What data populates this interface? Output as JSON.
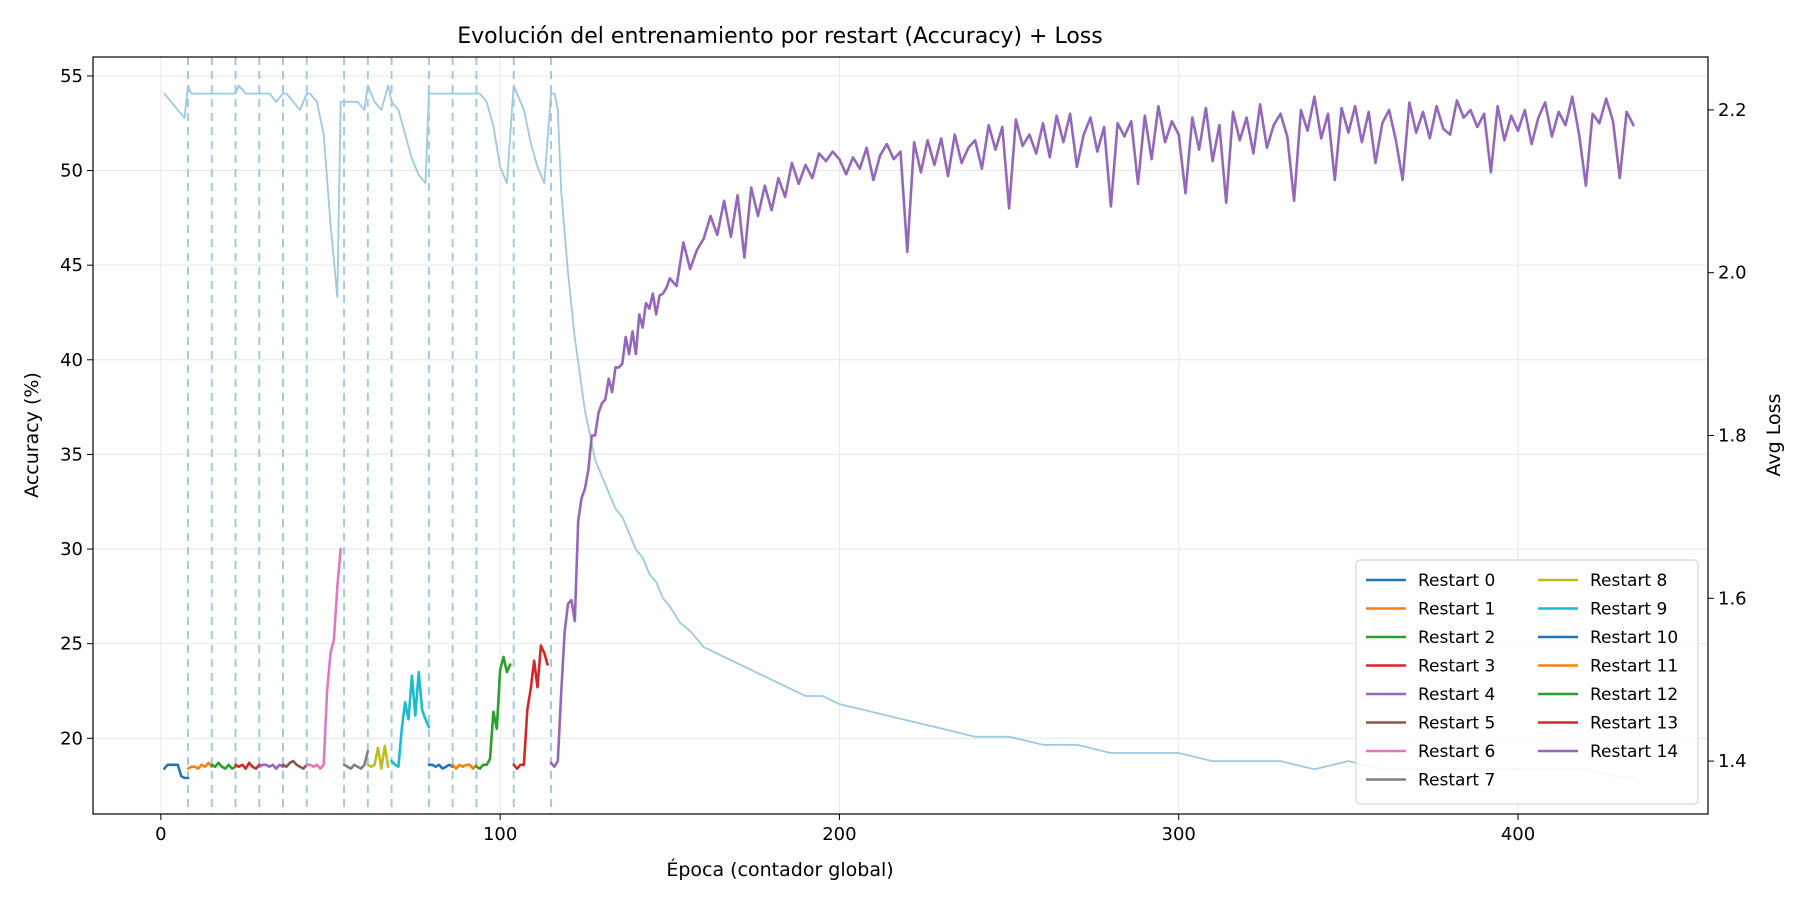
{
  "chart_data": {
    "type": "line",
    "title": "Evolución del entrenamiento por restart (Accuracy) + Loss",
    "xlabel": "Época (contador global)",
    "ylabel": "Accuracy (%)",
    "y2label": "Avg Loss",
    "xlim": [
      -20,
      456
    ],
    "ylim": [
      16.0,
      56.0
    ],
    "y2lim": [
      1.335,
      2.265
    ],
    "xticks": [
      0,
      100,
      200,
      300,
      400
    ],
    "yticks": [
      20,
      25,
      30,
      35,
      40,
      45,
      50,
      55
    ],
    "y2ticks": [
      1.4,
      1.6,
      1.8,
      2.0,
      2.2
    ],
    "grid": true,
    "legend_position": "lower-right",
    "legend_columns": 2,
    "restart_markers": [
      8,
      15,
      22,
      29,
      36,
      43,
      54,
      61,
      68,
      79,
      86,
      93,
      104,
      115
    ],
    "series": [
      {
        "name": "Restart 0",
        "color": "#1f77b4",
        "x": [
          1,
          2,
          3,
          4,
          5,
          6,
          7,
          8
        ],
        "y": [
          18.4,
          18.6,
          18.6,
          18.6,
          18.6,
          18.0,
          17.9,
          17.9
        ]
      },
      {
        "name": "Restart 1",
        "color": "#ff7f0e",
        "x": [
          8,
          9,
          10,
          11,
          12,
          13,
          14,
          15
        ],
        "y": [
          18.4,
          18.5,
          18.5,
          18.4,
          18.6,
          18.5,
          18.7,
          18.5
        ]
      },
      {
        "name": "Restart 2",
        "color": "#2ca02c",
        "x": [
          15,
          16,
          17,
          18,
          19,
          20,
          21,
          22
        ],
        "y": [
          18.6,
          18.5,
          18.7,
          18.5,
          18.4,
          18.6,
          18.4,
          18.5
        ]
      },
      {
        "name": "Restart 3",
        "color": "#d62728",
        "x": [
          22,
          23,
          24,
          25,
          26,
          27,
          28,
          29
        ],
        "y": [
          18.6,
          18.5,
          18.6,
          18.4,
          18.7,
          18.5,
          18.4,
          18.6
        ]
      },
      {
        "name": "Restart 4",
        "color": "#9467bd",
        "x": [
          29,
          30,
          31,
          32,
          33,
          34,
          35,
          36
        ],
        "y": [
          18.5,
          18.6,
          18.6,
          18.5,
          18.6,
          18.4,
          18.6,
          18.5
        ]
      },
      {
        "name": "Restart 5",
        "color": "#8c564b",
        "x": [
          36,
          37,
          38,
          39,
          40,
          41,
          42,
          43
        ],
        "y": [
          18.6,
          18.5,
          18.7,
          18.8,
          18.6,
          18.5,
          18.4,
          18.6
        ]
      },
      {
        "name": "Restart 6",
        "color": "#e377c2",
        "x": [
          43,
          44,
          45,
          46,
          47,
          48,
          49,
          50,
          51,
          52,
          53
        ],
        "y": [
          18.6,
          18.6,
          18.5,
          18.6,
          18.4,
          18.6,
          22.5,
          24.5,
          25.2,
          28.0,
          30.0
        ]
      },
      {
        "name": "Restart 7",
        "color": "#7f7f7f",
        "x": [
          54,
          55,
          56,
          57,
          58,
          59,
          60,
          61
        ],
        "y": [
          18.6,
          18.5,
          18.4,
          18.6,
          18.5,
          18.4,
          18.6,
          19.3
        ]
      },
      {
        "name": "Restart 8",
        "color": "#bcbd22",
        "x": [
          61,
          62,
          63,
          64,
          65,
          66,
          67
        ],
        "y": [
          18.6,
          18.5,
          18.6,
          19.5,
          18.4,
          19.6,
          18.5
        ]
      },
      {
        "name": "Restart 9",
        "color": "#17becf",
        "x": [
          68,
          69,
          70,
          71,
          72,
          73,
          74,
          75,
          76,
          77,
          78,
          79
        ],
        "y": [
          18.8,
          18.6,
          18.5,
          20.5,
          21.9,
          21.0,
          23.3,
          21.2,
          23.5,
          21.5,
          21.0,
          20.6
        ]
      },
      {
        "name": "Restart 10",
        "color": "#1f77b4",
        "x": [
          79,
          80,
          81,
          82,
          83,
          84,
          85,
          86
        ],
        "y": [
          18.6,
          18.6,
          18.5,
          18.6,
          18.4,
          18.5,
          18.6,
          18.5
        ]
      },
      {
        "name": "Restart 11",
        "color": "#ff7f0e",
        "x": [
          86,
          87,
          88,
          89,
          90,
          91,
          92,
          93
        ],
        "y": [
          18.6,
          18.4,
          18.6,
          18.5,
          18.6,
          18.6,
          18.4,
          18.6
        ]
      },
      {
        "name": "Restart 12",
        "color": "#2ca02c",
        "x": [
          93,
          94,
          95,
          96,
          97,
          98,
          99,
          100,
          101,
          102,
          103
        ],
        "y": [
          18.5,
          18.4,
          18.6,
          18.6,
          18.9,
          21.4,
          20.5,
          23.6,
          24.3,
          23.5,
          23.9
        ]
      },
      {
        "name": "Restart 13",
        "color": "#d62728",
        "x": [
          104,
          105,
          106,
          107,
          108,
          109,
          110,
          111,
          112,
          113,
          114
        ],
        "y": [
          18.6,
          18.4,
          18.6,
          18.6,
          21.5,
          22.6,
          24.1,
          22.7,
          24.9,
          24.5,
          23.9
        ]
      },
      {
        "name": "Restart 14",
        "color": "#9467bd",
        "x": [
          115,
          116,
          117,
          118,
          119,
          120,
          121,
          122,
          123,
          124,
          125,
          126,
          127,
          128,
          129,
          130,
          131,
          132,
          133,
          134,
          135,
          136,
          137,
          138,
          139,
          140,
          141,
          142,
          143,
          144,
          145,
          146,
          147,
          148,
          149,
          150,
          152,
          154,
          156,
          158,
          160,
          162,
          164,
          166,
          168,
          170,
          172,
          174,
          176,
          178,
          180,
          182,
          184,
          186,
          188,
          190,
          192,
          194,
          196,
          198,
          200,
          202,
          204,
          206,
          208,
          210,
          212,
          214,
          216,
          218,
          220,
          222,
          224,
          226,
          228,
          230,
          232,
          234,
          236,
          238,
          240,
          242,
          244,
          246,
          248,
          250,
          252,
          254,
          256,
          258,
          260,
          262,
          264,
          266,
          268,
          270,
          272,
          274,
          276,
          278,
          280,
          282,
          284,
          286,
          288,
          290,
          292,
          294,
          296,
          298,
          300,
          302,
          304,
          306,
          308,
          310,
          312,
          314,
          316,
          318,
          320,
          322,
          324,
          326,
          328,
          330,
          332,
          334,
          336,
          338,
          340,
          342,
          344,
          346,
          348,
          350,
          352,
          354,
          356,
          358,
          360,
          362,
          364,
          366,
          368,
          370,
          372,
          374,
          376,
          378,
          380,
          382,
          384,
          386,
          388,
          390,
          392,
          394,
          396,
          398,
          400,
          402,
          404,
          406,
          408,
          410,
          412,
          414,
          416,
          418,
          420,
          422,
          424,
          426,
          428,
          430,
          432,
          434
        ],
        "y": [
          18.7,
          18.5,
          18.8,
          22.4,
          25.6,
          27.1,
          27.3,
          26.2,
          31.5,
          32.7,
          33.2,
          34.2,
          36.0,
          36.0,
          37.2,
          37.7,
          37.9,
          39.0,
          38.3,
          39.6,
          39.6,
          39.8,
          41.2,
          40.3,
          41.5,
          40.3,
          42.4,
          41.7,
          43.0,
          42.7,
          43.5,
          42.4,
          43.4,
          43.5,
          43.8,
          44.3,
          43.9,
          46.2,
          44.8,
          45.8,
          46.4,
          47.6,
          46.6,
          48.4,
          46.5,
          48.7,
          45.4,
          49.1,
          47.6,
          49.2,
          47.9,
          49.6,
          48.6,
          50.4,
          49.3,
          50.3,
          49.6,
          50.9,
          50.5,
          51.0,
          50.6,
          49.8,
          50.7,
          50.1,
          51.2,
          49.5,
          50.8,
          51.4,
          50.6,
          51.0,
          45.7,
          51.5,
          49.9,
          51.6,
          50.3,
          51.7,
          49.7,
          51.9,
          50.4,
          51.2,
          51.6,
          50.1,
          52.4,
          51.1,
          52.3,
          48.0,
          52.7,
          51.3,
          51.9,
          50.9,
          52.5,
          50.7,
          52.9,
          51.5,
          53.0,
          50.2,
          51.9,
          52.8,
          51.0,
          52.3,
          48.1,
          52.5,
          51.8,
          52.6,
          49.3,
          52.9,
          50.6,
          53.4,
          51.5,
          52.6,
          51.9,
          48.8,
          52.8,
          51.1,
          53.3,
          50.5,
          52.4,
          48.3,
          53.1,
          51.6,
          52.8,
          50.9,
          53.5,
          51.2,
          52.4,
          53.0,
          51.8,
          48.4,
          53.2,
          52.1,
          53.9,
          51.7,
          53.0,
          49.5,
          53.3,
          52.0,
          53.4,
          51.5,
          53.1,
          50.4,
          52.5,
          53.2,
          51.6,
          49.5,
          53.6,
          52.0,
          53.1,
          51.7,
          53.4,
          52.2,
          51.9,
          53.7,
          52.8,
          53.2,
          52.3,
          53.0,
          49.9,
          53.4,
          51.6,
          52.9,
          52.1,
          53.2,
          51.4,
          52.8,
          53.6,
          51.8,
          53.1,
          52.4,
          53.9,
          51.9,
          49.2,
          53.0,
          52.5,
          53.8,
          52.6,
          49.6,
          53.1,
          52.4
        ]
      },
      {
        "name": "Avg Loss",
        "axis": "right",
        "color": "#9ecae1",
        "x": [
          1,
          3,
          5,
          7,
          8,
          9,
          11,
          13,
          15,
          16,
          18,
          20,
          22,
          23,
          25,
          27,
          29,
          30,
          32,
          34,
          36,
          37,
          39,
          41,
          43,
          44,
          46,
          48,
          50,
          52,
          53,
          54,
          56,
          58,
          60,
          61,
          63,
          65,
          67,
          68,
          70,
          72,
          74,
          76,
          78,
          79,
          80,
          82,
          84,
          86,
          88,
          90,
          92,
          93,
          94,
          96,
          98,
          100,
          102,
          104,
          105,
          107,
          109,
          111,
          113,
          115,
          116,
          117,
          118,
          119,
          120,
          121,
          122,
          123,
          124,
          125,
          126,
          127,
          128,
          130,
          132,
          134,
          136,
          138,
          140,
          142,
          144,
          146,
          148,
          150,
          153,
          156,
          160,
          165,
          170,
          175,
          180,
          185,
          190,
          195,
          200,
          210,
          220,
          230,
          240,
          250,
          260,
          270,
          280,
          290,
          300,
          310,
          320,
          330,
          340,
          350,
          360,
          370,
          380,
          390,
          400,
          410,
          420,
          430,
          434
        ],
        "y": [
          2.22,
          2.21,
          2.2,
          2.19,
          2.23,
          2.22,
          2.22,
          2.22,
          2.22,
          2.22,
          2.22,
          2.22,
          2.22,
          2.23,
          2.22,
          2.22,
          2.22,
          2.22,
          2.22,
          2.21,
          2.22,
          2.22,
          2.21,
          2.2,
          2.22,
          2.22,
          2.21,
          2.17,
          2.06,
          1.97,
          2.21,
          2.21,
          2.21,
          2.21,
          2.2,
          2.23,
          2.21,
          2.2,
          2.23,
          2.21,
          2.2,
          2.17,
          2.14,
          2.12,
          2.11,
          2.22,
          2.22,
          2.22,
          2.22,
          2.22,
          2.22,
          2.22,
          2.22,
          2.22,
          2.22,
          2.21,
          2.18,
          2.13,
          2.11,
          2.23,
          2.22,
          2.2,
          2.16,
          2.13,
          2.11,
          2.22,
          2.22,
          2.2,
          2.1,
          2.05,
          2.0,
          1.96,
          1.92,
          1.89,
          1.86,
          1.83,
          1.81,
          1.79,
          1.77,
          1.75,
          1.73,
          1.71,
          1.7,
          1.68,
          1.66,
          1.65,
          1.63,
          1.62,
          1.6,
          1.59,
          1.57,
          1.56,
          1.54,
          1.53,
          1.52,
          1.51,
          1.5,
          1.49,
          1.48,
          1.48,
          1.47,
          1.46,
          1.45,
          1.44,
          1.43,
          1.43,
          1.42,
          1.42,
          1.41,
          1.41,
          1.41,
          1.4,
          1.4,
          1.4,
          1.39,
          1.4,
          1.39,
          1.39,
          1.39,
          1.39,
          1.39,
          1.39,
          1.39,
          1.38,
          1.38
        ]
      }
    ]
  }
}
